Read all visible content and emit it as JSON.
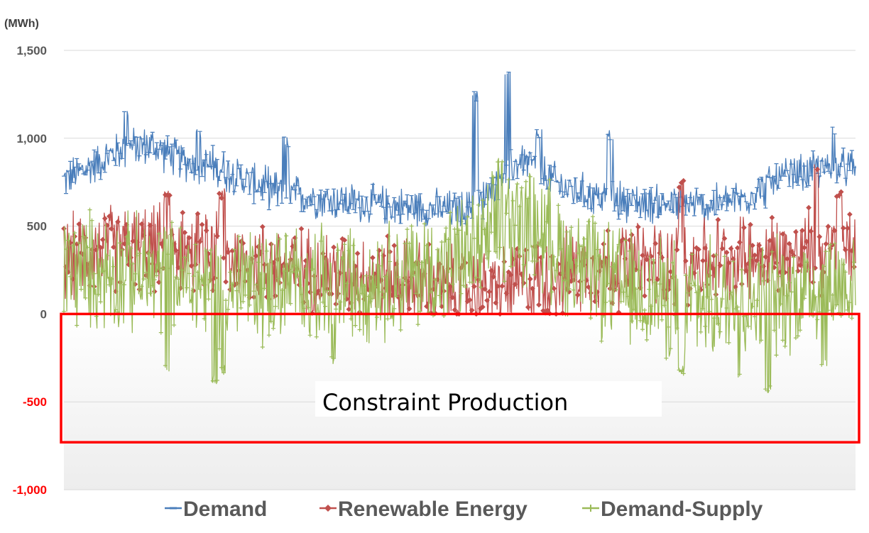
{
  "chart_data": {
    "type": "line",
    "title": "",
    "unit_label": "(MWh)",
    "xlabel": "",
    "ylabel": "",
    "ylim": [
      -1000,
      1500
    ],
    "yticks": [
      {
        "value": 1500,
        "label": "1,500"
      },
      {
        "value": 1000,
        "label": "1,000"
      },
      {
        "value": 500,
        "label": "500"
      },
      {
        "value": 0,
        "label": "0"
      },
      {
        "value": -500,
        "label": "-500"
      },
      {
        "value": -1000,
        "label": "-1,000"
      }
    ],
    "positive_tick_color": "#595959",
    "negative_tick_color": "#ff0000",
    "grid": true,
    "legend_position": "bottom",
    "series": [
      {
        "name": "Demand",
        "color": "#4a7ebb",
        "marker": "dash",
        "approx_range": [
          500,
          1420
        ],
        "envelope": [
          [
            0,
            760
          ],
          [
            0.03,
            830
          ],
          [
            0.07,
            930
          ],
          [
            0.09,
            950
          ],
          [
            0.11,
            960
          ],
          [
            0.15,
            870
          ],
          [
            0.2,
            830
          ],
          [
            0.23,
            760
          ],
          [
            0.28,
            690
          ],
          [
            0.33,
            650
          ],
          [
            0.4,
            620
          ],
          [
            0.46,
            600
          ],
          [
            0.5,
            590
          ],
          [
            0.52,
            600
          ],
          [
            0.55,
            780
          ],
          [
            0.58,
            880
          ],
          [
            0.6,
            820
          ],
          [
            0.63,
            720
          ],
          [
            0.68,
            660
          ],
          [
            0.72,
            640
          ],
          [
            0.78,
            620
          ],
          [
            0.82,
            620
          ],
          [
            0.86,
            660
          ],
          [
            0.9,
            760
          ],
          [
            0.95,
            820
          ],
          [
            1,
            830
          ]
        ],
        "spread": 110,
        "peaks": [
          [
            0.08,
            1170
          ],
          [
            0.17,
            1050
          ],
          [
            0.28,
            1010
          ],
          [
            0.52,
            1270
          ],
          [
            0.56,
            1420
          ],
          [
            0.6,
            1050
          ],
          [
            0.69,
            1050
          ],
          [
            0.97,
            1070
          ]
        ]
      },
      {
        "name": "Renewable Energy",
        "color": "#c0504d",
        "marker": "diamond",
        "approx_range": [
          0,
          860
        ],
        "envelope": [
          [
            0,
            300
          ],
          [
            0.05,
            380
          ],
          [
            0.12,
            380
          ],
          [
            0.2,
            320
          ],
          [
            0.28,
            260
          ],
          [
            0.35,
            230
          ],
          [
            0.42,
            200
          ],
          [
            0.48,
            150
          ],
          [
            0.52,
            120
          ],
          [
            0.56,
            150
          ],
          [
            0.6,
            200
          ],
          [
            0.65,
            250
          ],
          [
            0.72,
            280
          ],
          [
            0.78,
            300
          ],
          [
            0.85,
            320
          ],
          [
            0.9,
            330
          ],
          [
            0.95,
            350
          ],
          [
            1,
            360
          ]
        ],
        "spread": 240,
        "peaks": [
          [
            0.13,
            700
          ],
          [
            0.2,
            720
          ],
          [
            0.78,
            760
          ],
          [
            0.95,
            860
          ],
          [
            0.98,
            700
          ]
        ]
      },
      {
        "name": "Demand-Supply",
        "color": "#9bbb59",
        "marker": "plus",
        "approx_range": [
          -460,
          910
        ],
        "envelope": [
          [
            0,
            260
          ],
          [
            0.05,
            240
          ],
          [
            0.1,
            220
          ],
          [
            0.15,
            180
          ],
          [
            0.2,
            160
          ],
          [
            0.3,
            170
          ],
          [
            0.4,
            200
          ],
          [
            0.48,
            260
          ],
          [
            0.53,
            380
          ],
          [
            0.56,
            540
          ],
          [
            0.6,
            480
          ],
          [
            0.65,
            260
          ],
          [
            0.72,
            120
          ],
          [
            0.78,
            80
          ],
          [
            0.84,
            60
          ],
          [
            0.88,
            80
          ],
          [
            0.95,
            150
          ],
          [
            1,
            180
          ]
        ],
        "spread": 330,
        "peaks": [
          [
            0.55,
            910
          ],
          [
            0.57,
            700
          ]
        ],
        "troughs": [
          [
            0.13,
            -340
          ],
          [
            0.19,
            -400
          ],
          [
            0.2,
            -350
          ],
          [
            0.34,
            -300
          ],
          [
            0.78,
            -350
          ],
          [
            0.85,
            -380
          ],
          [
            0.89,
            -460
          ],
          [
            0.96,
            -310
          ]
        ]
      }
    ],
    "annotations": [
      {
        "text": "Constraint Production",
        "region_y": [
          0,
          -730
        ],
        "color": "#ff0000"
      }
    ]
  }
}
